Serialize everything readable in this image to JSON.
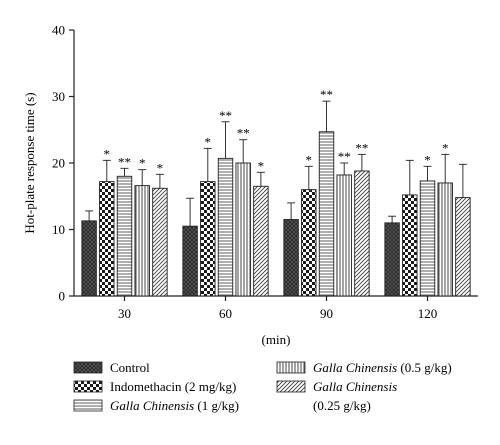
{
  "chart_data": {
    "type": "bar",
    "title": "",
    "xlabel": "(min)",
    "ylabel": "Hot-plate response time (s)",
    "ylim": [
      0,
      40
    ],
    "yticks": [
      0,
      10,
      20,
      30,
      40
    ],
    "categories": [
      "30",
      "60",
      "90",
      "120"
    ],
    "grid": false,
    "legend_position": "bottom",
    "series": [
      {
        "name": "Control",
        "name_italic": "",
        "name_suffix": "",
        "pattern": "crosshatch-dark",
        "values": [
          11.3,
          10.5,
          11.5,
          11.0
        ],
        "errors": [
          1.5,
          4.2,
          2.5,
          1.0
        ],
        "significance": [
          "",
          "",
          "",
          ""
        ]
      },
      {
        "name": "Indomethacin (2 mg/kg)",
        "name_italic": "",
        "name_suffix": "",
        "pattern": "checker",
        "values": [
          17.2,
          17.2,
          16.0,
          15.2
        ],
        "errors": [
          3.2,
          5.0,
          3.5,
          5.2
        ],
        "significance": [
          "*",
          "*",
          "*",
          ""
        ]
      },
      {
        "name": "Galla Chinensis (1 g/kg)",
        "name_italic": "Galla Chinensis",
        "name_suffix": " (1 g/kg)",
        "pattern": "horizontal-lines",
        "values": [
          18.0,
          20.7,
          24.7,
          17.3
        ],
        "errors": [
          1.2,
          5.5,
          4.6,
          2.2
        ],
        "significance": [
          "**",
          "**",
          "**",
          "*"
        ]
      },
      {
        "name": "Galla Chinensis (0.5 g/kg)",
        "name_italic": "Galla Chinensis",
        "name_suffix": " (0.5 g/kg)",
        "pattern": "vertical-lines",
        "values": [
          16.6,
          20.0,
          18.2,
          17.0
        ],
        "errors": [
          2.4,
          3.5,
          1.8,
          4.3
        ],
        "significance": [
          "*",
          "**",
          "**",
          "*"
        ]
      },
      {
        "name": "Galla Chinensis (0.25 g/kg)",
        "name_italic": "Galla Chinensis",
        "name_suffix": "(0.25 g/kg)",
        "pattern": "diagonal-lines",
        "values": [
          16.2,
          16.5,
          18.8,
          14.8
        ],
        "errors": [
          2.1,
          2.1,
          2.5,
          5.0
        ],
        "significance": [
          "*",
          "*",
          "**",
          ""
        ]
      }
    ]
  }
}
